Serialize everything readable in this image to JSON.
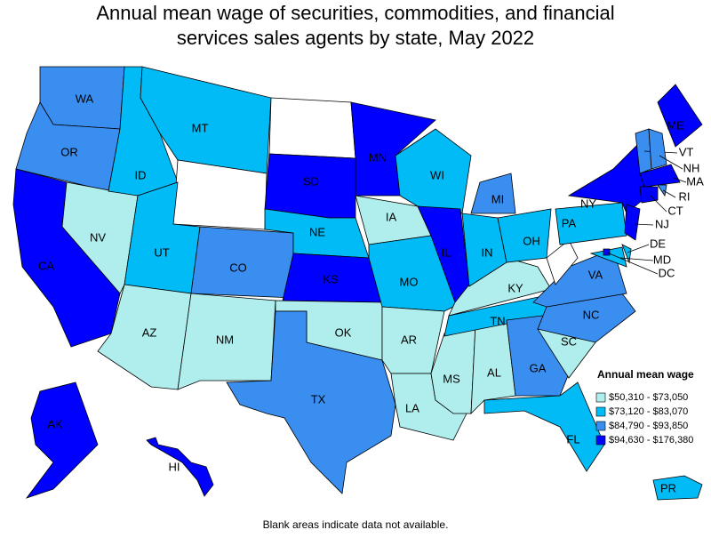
{
  "title": "Annual mean wage of securities, commodities, and financial services sales agents by state, May 2022",
  "footnote": "Blank areas indicate data not available.",
  "legend": {
    "title": "Annual mean wage",
    "items": [
      {
        "label": "$50,310 - $73,050",
        "color": "#b0eeee"
      },
      {
        "label": "$73,120 - $83,070",
        "color": "#00bbf5"
      },
      {
        "label": "$84,790 - $93,850",
        "color": "#3a8ef0"
      },
      {
        "label": "$94,630 - $176,380",
        "color": "#0000ff"
      }
    ]
  },
  "states": [
    {
      "label": "WA",
      "color": "#3a8ef0"
    },
    {
      "label": "OR",
      "color": "#3a8ef0"
    },
    {
      "label": "CA",
      "color": "#0000ff"
    },
    {
      "label": "NV",
      "color": "#b0eeee"
    },
    {
      "label": "ID",
      "color": "#00bbf5"
    },
    {
      "label": "MT",
      "color": "#00bbf5"
    },
    {
      "label": null,
      "color": "#ffffff"
    },
    {
      "label": "UT",
      "color": "#00bbf5"
    },
    {
      "label": "CO",
      "color": "#3a8ef0"
    },
    {
      "label": "AZ",
      "color": "#b0eeee"
    },
    {
      "label": "NM",
      "color": "#b0eeee"
    },
    {
      "label": null,
      "color": "#ffffff"
    },
    {
      "label": "SD",
      "color": "#0000ff"
    },
    {
      "label": "NE",
      "color": "#00bbf5"
    },
    {
      "label": "KS",
      "color": "#0000ff"
    },
    {
      "label": "OK",
      "color": "#b0eeee"
    },
    {
      "label": "TX",
      "color": "#3a8ef0"
    },
    {
      "label": "MN",
      "color": "#0000ff"
    },
    {
      "label": "IA",
      "color": "#b0eeee"
    },
    {
      "label": "MO",
      "color": "#00bbf5"
    },
    {
      "label": "AR",
      "color": "#b0eeee"
    },
    {
      "label": "LA",
      "color": "#b0eeee"
    },
    {
      "label": "WI",
      "color": "#00bbf5"
    },
    {
      "label": "IL",
      "color": "#0000ff"
    },
    {
      "label": "MS",
      "color": "#b0eeee"
    },
    {
      "label": "AL",
      "color": "#b0eeee"
    },
    {
      "label": "TN",
      "color": "#00bbf5"
    },
    {
      "label": "KY",
      "color": "#b0eeee"
    },
    {
      "label": "IN",
      "color": "#00bbf5"
    },
    {
      "label": "MI",
      "color": "#3a8ef0"
    },
    {
      "label": "OH",
      "color": "#00bbf5"
    },
    {
      "label": "GA",
      "color": "#3a8ef0"
    },
    {
      "label": "FL",
      "color": "#00bbf5"
    },
    {
      "label": "SC",
      "color": "#b0eeee"
    },
    {
      "label": "NC",
      "color": "#3a8ef0"
    },
    {
      "label": "VA",
      "color": "#3a8ef0"
    },
    {
      "label": null,
      "color": "#ffffff"
    },
    {
      "label": "PA",
      "color": "#00bbf5"
    },
    {
      "label": "NY",
      "color": "#0000ff"
    },
    {
      "label": "ME",
      "color": "#0000ff"
    },
    {
      "label": "VT",
      "color": "#3a8ef0"
    },
    {
      "label": "NH",
      "color": "#3a8ef0"
    },
    {
      "label": "MA",
      "color": "#0000ff"
    },
    {
      "label": "CT",
      "color": "#0000ff"
    },
    {
      "label": "RI",
      "color": "#3a8ef0"
    },
    {
      "label": "NJ",
      "color": "#0000ff"
    },
    {
      "label": "DE",
      "color": "#00bbf5"
    },
    {
      "label": "MD",
      "color": "#00bbf5"
    },
    {
      "label": "DC",
      "color": "#0000ff"
    },
    {
      "label": "AK",
      "color": "#0000ff"
    },
    {
      "label": "HI",
      "color": "#0000ff"
    },
    {
      "label": "PR",
      "color": "#00bbf5"
    }
  ]
}
